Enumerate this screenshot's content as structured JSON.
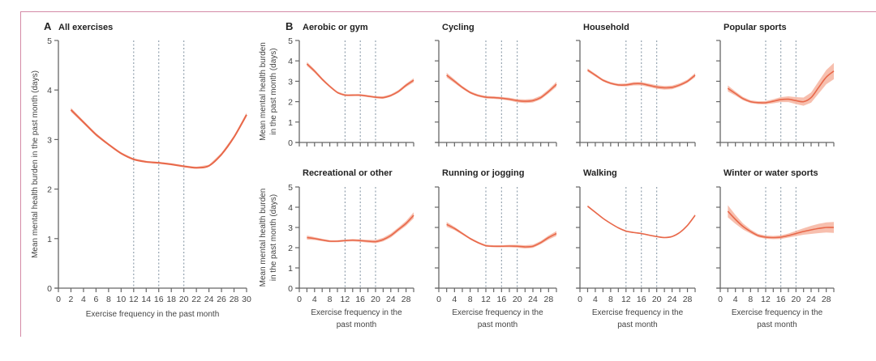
{
  "panel_letters": {
    "A": "A",
    "B": "B"
  },
  "colors": {
    "line": "#e8684a",
    "band": "#f6b4a0",
    "axis": "#666666",
    "ref": "#8a9aa8"
  },
  "chart_data": [
    {
      "type": "line",
      "panel": "A",
      "title": "All exercises",
      "xlabel": "Exercise frequency in the past month",
      "ylabel": "Mean mental health burden in the past month (days)",
      "xlim": [
        0,
        30
      ],
      "ylim": [
        0,
        5
      ],
      "xticks": [
        0,
        2,
        4,
        6,
        8,
        10,
        12,
        14,
        16,
        18,
        20,
        22,
        24,
        26,
        28,
        30
      ],
      "yticks": [
        0,
        1,
        2,
        3,
        4,
        5
      ],
      "ref_lines": [
        12,
        16,
        20
      ],
      "x": [
        2,
        4,
        6,
        8,
        10,
        12,
        14,
        16,
        18,
        20,
        22,
        24,
        26,
        28,
        30
      ],
      "y": [
        3.6,
        3.35,
        3.1,
        2.9,
        2.72,
        2.6,
        2.55,
        2.53,
        2.5,
        2.46,
        2.43,
        2.47,
        2.7,
        3.05,
        3.5
      ],
      "ci_halfwidth": [
        0.04,
        0.03,
        0.03,
        0.02,
        0.02,
        0.02,
        0.02,
        0.02,
        0.02,
        0.02,
        0.02,
        0.02,
        0.03,
        0.03,
        0.04
      ]
    },
    {
      "type": "line",
      "panel": "B",
      "title": "Aerobic or gym",
      "ylabel": [
        "Mean mental health burden",
        "in the past month (days)"
      ],
      "xlim": [
        0,
        30
      ],
      "ylim": [
        0,
        5
      ],
      "ref_lines": [
        12,
        16,
        20
      ],
      "x": [
        2,
        4,
        6,
        8,
        10,
        12,
        14,
        16,
        18,
        20,
        22,
        24,
        26,
        28,
        30
      ],
      "y": [
        3.85,
        3.5,
        3.1,
        2.75,
        2.45,
        2.32,
        2.32,
        2.32,
        2.27,
        2.22,
        2.2,
        2.3,
        2.5,
        2.8,
        3.05
      ],
      "ci_halfwidth": [
        0.1,
        0.08,
        0.07,
        0.06,
        0.05,
        0.05,
        0.05,
        0.05,
        0.05,
        0.05,
        0.06,
        0.06,
        0.07,
        0.08,
        0.1
      ]
    },
    {
      "type": "line",
      "panel": "B",
      "title": "Cycling",
      "xlim": [
        0,
        30
      ],
      "ylim": [
        0,
        5
      ],
      "ref_lines": [
        12,
        16,
        20
      ],
      "x": [
        2,
        4,
        6,
        8,
        10,
        12,
        14,
        16,
        18,
        20,
        22,
        24,
        26,
        28,
        30
      ],
      "y": [
        3.3,
        3.0,
        2.7,
        2.45,
        2.3,
        2.22,
        2.2,
        2.17,
        2.12,
        2.05,
        2.02,
        2.05,
        2.2,
        2.5,
        2.85
      ],
      "ci_halfwidth": [
        0.12,
        0.09,
        0.07,
        0.06,
        0.06,
        0.06,
        0.06,
        0.06,
        0.07,
        0.08,
        0.09,
        0.09,
        0.09,
        0.1,
        0.12
      ]
    },
    {
      "type": "line",
      "panel": "B",
      "title": "Household",
      "xlim": [
        0,
        30
      ],
      "ylim": [
        0,
        5
      ],
      "ref_lines": [
        12,
        16,
        20
      ],
      "x": [
        2,
        4,
        6,
        8,
        10,
        12,
        14,
        16,
        18,
        20,
        22,
        24,
        26,
        28,
        30
      ],
      "y": [
        3.55,
        3.3,
        3.05,
        2.9,
        2.82,
        2.82,
        2.88,
        2.88,
        2.8,
        2.72,
        2.68,
        2.7,
        2.82,
        3.0,
        3.3
      ],
      "ci_halfwidth": [
        0.08,
        0.07,
        0.06,
        0.06,
        0.06,
        0.07,
        0.08,
        0.08,
        0.08,
        0.09,
        0.09,
        0.09,
        0.08,
        0.08,
        0.1
      ]
    },
    {
      "type": "line",
      "panel": "B",
      "title": "Popular sports",
      "xlim": [
        0,
        30
      ],
      "ylim": [
        0,
        5
      ],
      "ref_lines": [
        12,
        16,
        20
      ],
      "x": [
        2,
        4,
        6,
        8,
        10,
        12,
        14,
        16,
        18,
        20,
        22,
        24,
        26,
        28,
        30
      ],
      "y": [
        2.65,
        2.4,
        2.15,
        2.0,
        1.95,
        1.95,
        2.02,
        2.1,
        2.12,
        2.05,
        2.0,
        2.2,
        2.7,
        3.2,
        3.5
      ],
      "ci_halfwidth": [
        0.15,
        0.1,
        0.08,
        0.07,
        0.07,
        0.08,
        0.1,
        0.12,
        0.14,
        0.17,
        0.2,
        0.25,
        0.3,
        0.35,
        0.4
      ]
    },
    {
      "type": "line",
      "panel": "B",
      "title": "Recreational or other",
      "ylabel": [
        "Mean mental health burden",
        "in the past month (days)"
      ],
      "xlabel": [
        "Exercise frequency in the",
        "past month"
      ],
      "xlim": [
        0,
        30
      ],
      "ylim": [
        0,
        5
      ],
      "ref_lines": [
        12,
        16,
        20
      ],
      "x": [
        2,
        4,
        6,
        8,
        10,
        12,
        14,
        16,
        18,
        20,
        22,
        24,
        26,
        28,
        30
      ],
      "y": [
        2.5,
        2.45,
        2.38,
        2.32,
        2.32,
        2.35,
        2.37,
        2.35,
        2.32,
        2.3,
        2.4,
        2.6,
        2.9,
        3.2,
        3.6
      ],
      "ci_halfwidth": [
        0.1,
        0.07,
        0.06,
        0.05,
        0.05,
        0.05,
        0.06,
        0.06,
        0.07,
        0.08,
        0.09,
        0.1,
        0.1,
        0.12,
        0.15
      ]
    },
    {
      "type": "line",
      "panel": "B",
      "title": "Running or jogging",
      "xlabel": [
        "Exercise frequency in the",
        "past month"
      ],
      "xlim": [
        0,
        30
      ],
      "ylim": [
        0,
        5
      ],
      "ref_lines": [
        12,
        16,
        20
      ],
      "x": [
        2,
        4,
        6,
        8,
        10,
        12,
        14,
        16,
        18,
        20,
        22,
        24,
        26,
        28,
        30
      ],
      "y": [
        3.15,
        2.95,
        2.7,
        2.45,
        2.25,
        2.1,
        2.07,
        2.07,
        2.08,
        2.07,
        2.04,
        2.07,
        2.25,
        2.5,
        2.7
      ],
      "ci_halfwidth": [
        0.12,
        0.08,
        0.06,
        0.05,
        0.05,
        0.05,
        0.05,
        0.05,
        0.06,
        0.07,
        0.08,
        0.08,
        0.08,
        0.1,
        0.12
      ]
    },
    {
      "type": "line",
      "panel": "B",
      "title": "Walking",
      "xlabel": [
        "Exercise frequency in the",
        "past month"
      ],
      "xlim": [
        0,
        30
      ],
      "ylim": [
        0,
        5
      ],
      "ref_lines": [
        12,
        16,
        20
      ],
      "x": [
        2,
        4,
        6,
        8,
        10,
        12,
        14,
        16,
        18,
        20,
        22,
        24,
        26,
        28,
        30
      ],
      "y": [
        4.05,
        3.75,
        3.45,
        3.2,
        2.98,
        2.82,
        2.75,
        2.7,
        2.62,
        2.55,
        2.5,
        2.55,
        2.75,
        3.1,
        3.6
      ],
      "ci_halfwidth": [
        0.05,
        0.04,
        0.03,
        0.03,
        0.03,
        0.03,
        0.03,
        0.03,
        0.03,
        0.03,
        0.03,
        0.03,
        0.03,
        0.04,
        0.05
      ]
    },
    {
      "type": "line",
      "panel": "B",
      "title": "Winter or water sports",
      "xlabel": [
        "Exercise frequency in the",
        "past month"
      ],
      "xlim": [
        0,
        30
      ],
      "ylim": [
        0,
        5
      ],
      "ref_lines": [
        12,
        16,
        20
      ],
      "x": [
        2,
        4,
        6,
        8,
        10,
        12,
        14,
        16,
        18,
        20,
        22,
        24,
        26,
        28,
        30
      ],
      "y": [
        3.8,
        3.4,
        3.05,
        2.8,
        2.6,
        2.52,
        2.5,
        2.52,
        2.6,
        2.7,
        2.8,
        2.88,
        2.95,
        3.0,
        3.0
      ],
      "ci_halfwidth": [
        0.3,
        0.22,
        0.15,
        0.1,
        0.08,
        0.08,
        0.08,
        0.09,
        0.1,
        0.13,
        0.16,
        0.2,
        0.23,
        0.25,
        0.27
      ]
    }
  ]
}
